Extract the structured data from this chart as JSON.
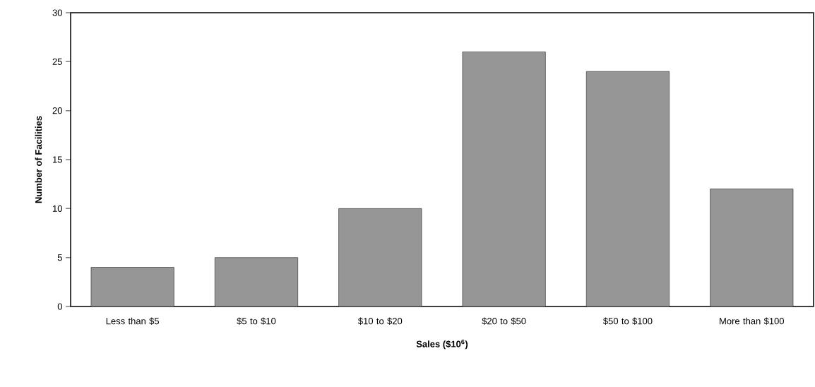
{
  "chart_data": {
    "type": "bar",
    "xlabel": "Sales ($10$^{6}$)",
    "ylabel": "Number of Facilities",
    "categories": [
      "Less than $5",
      "$5 to $10",
      "$10 to $20",
      "$20 to $50",
      "$50 to $100",
      "More than $100"
    ],
    "values": [
      4,
      5,
      10,
      26,
      24,
      12
    ],
    "color": "#969696",
    "ylim": [
      0,
      30
    ],
    "yticks": [
      0,
      5,
      10,
      15,
      20,
      25,
      30
    ]
  }
}
